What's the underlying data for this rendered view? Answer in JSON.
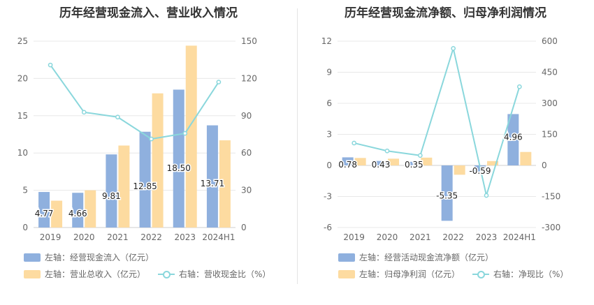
{
  "chart_data": [
    {
      "type": "bar",
      "title": "历年经营现金流入、营业收入情况",
      "categories": [
        "2019",
        "2020",
        "2021",
        "2022",
        "2023",
        "2024H1"
      ],
      "y_left": {
        "min": 0,
        "max": 25,
        "ticks": [
          0,
          5,
          10,
          15,
          20,
          25
        ]
      },
      "y_right": {
        "min": 0,
        "max": 150,
        "ticks": [
          0,
          30,
          60,
          90,
          120,
          150
        ]
      },
      "grid": true,
      "legend_position": "bottom",
      "series": [
        {
          "name": "左轴：经营现金流入（亿元）",
          "type": "bar",
          "axis": "left",
          "color": "#8fb0de",
          "values": [
            4.77,
            4.66,
            9.81,
            12.85,
            18.5,
            13.71
          ],
          "labels": [
            "4.77",
            "4.66",
            "9.81",
            "12.85",
            "18.50",
            "13.71"
          ]
        },
        {
          "name": "左轴：营业总收入（亿元）",
          "type": "bar",
          "axis": "left",
          "color": "#fddba0",
          "values": [
            3.6,
            5.0,
            11.0,
            18.0,
            24.4,
            11.7
          ]
        },
        {
          "name": "右轴：营收现金比（%）",
          "type": "line",
          "axis": "right",
          "color": "#8ad7dc",
          "values": [
            130.8,
            92.8,
            88.9,
            71.3,
            75.8,
            117.1
          ]
        }
      ]
    },
    {
      "type": "bar",
      "title": "历年经营现金流净额、归母净利润情况",
      "categories": [
        "2019",
        "2020",
        "2021",
        "2022",
        "2023",
        "2024H1"
      ],
      "y_left": {
        "min": -6,
        "max": 12,
        "ticks": [
          -6,
          -3,
          0,
          3,
          6,
          9,
          12
        ]
      },
      "y_right": {
        "min": -300,
        "max": 600,
        "ticks": [
          -300,
          -150,
          0,
          150,
          300,
          450,
          600
        ]
      },
      "grid": true,
      "legend_position": "bottom",
      "series": [
        {
          "name": "左轴：经营活动现金流净额（亿元）",
          "type": "bar",
          "axis": "left",
          "color": "#8fb0de",
          "values": [
            0.78,
            0.43,
            0.35,
            -5.35,
            -0.59,
            4.96
          ],
          "labels": [
            "0.78",
            "0.43",
            "0.35",
            "-5.35",
            "-0.59",
            "4.96"
          ]
        },
        {
          "name": "左轴：归母净利润（亿元）",
          "type": "bar",
          "axis": "left",
          "color": "#fddba0",
          "values": [
            0.72,
            0.65,
            0.75,
            -0.9,
            0.42,
            1.3
          ]
        },
        {
          "name": "右轴：净现比（%）",
          "type": "line",
          "axis": "right",
          "color": "#8ad7dc",
          "values": [
            108,
            70,
            48,
            565,
            -145,
            380
          ]
        }
      ]
    }
  ]
}
